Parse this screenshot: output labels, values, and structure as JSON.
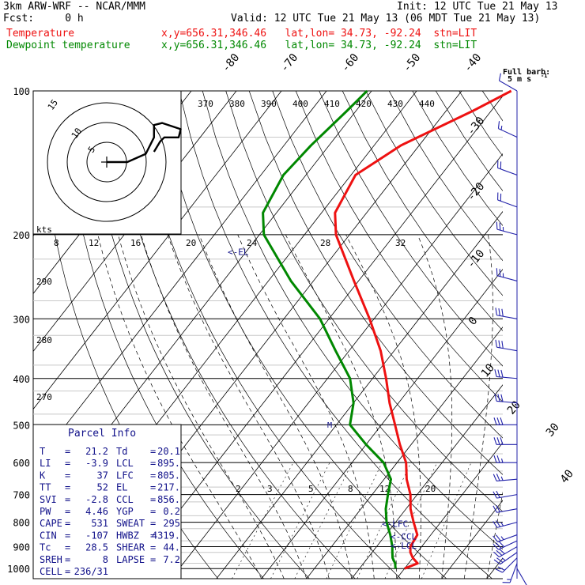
{
  "header": {
    "model": "3km ARW-WRF -- NCAR/MMM",
    "init": "Init: 12 UTC Tue 21 May 13",
    "fcst": "Fcst:     0 h",
    "valid": "Valid: 12 UTC Tue 21 May 13 (06 MDT Tue 21 May 13)",
    "temp_label": "Temperature",
    "dew_label": "Dewpoint temperature",
    "temp_loc": "x,y=656.31,346.46   lat,lon= 34.73, -92.24  stn=LIT",
    "dew_loc": "x,y=656.31,346.46   lat,lon= 34.73, -92.24  stn=LIT",
    "barb_title": "Full barb:",
    "barb_unit": "5 m s",
    "barb_unit_sup": "-1"
  },
  "colors": {
    "temperature": "#ee1111",
    "dewpoint": "#008800",
    "barbs": "#2222aa",
    "ebl": "#11118a"
  },
  "chart_data": {
    "type": "skew-t log-p sounding",
    "pressure_axis": {
      "levels": [
        100,
        200,
        300,
        400,
        500,
        600,
        700,
        800,
        900,
        1000
      ],
      "scale": "log"
    },
    "isotherm_labels": [
      -80,
      -70,
      -60,
      -50,
      -40,
      -30,
      -20,
      -10,
      0,
      10,
      20,
      30,
      40
    ],
    "theta_labels": [
      370,
      380,
      390,
      400,
      410,
      420,
      430,
      440
    ],
    "theta_e_labels": [
      290,
      280,
      270
    ],
    "mixing_ratio_labels": [
      "2",
      "3",
      "5",
      "8",
      "12",
      "20"
    ],
    "series": [
      {
        "name": "Temperature",
        "points": [
          [
            1000,
            20
          ],
          [
            975,
            22
          ],
          [
            950,
            20
          ],
          [
            925,
            18.5
          ],
          [
            900,
            17.5
          ],
          [
            850,
            17
          ],
          [
            800,
            14
          ],
          [
            750,
            11
          ],
          [
            700,
            8.5
          ],
          [
            650,
            5
          ],
          [
            600,
            2
          ],
          [
            550,
            -2.5
          ],
          [
            500,
            -7
          ],
          [
            450,
            -12
          ],
          [
            400,
            -17
          ],
          [
            350,
            -23
          ],
          [
            300,
            -31
          ],
          [
            250,
            -41
          ],
          [
            200,
            -53
          ],
          [
            180,
            -57
          ],
          [
            150,
            -59
          ],
          [
            130,
            -54
          ],
          [
            110,
            -44
          ],
          [
            100,
            -39
          ]
        ]
      },
      {
        "name": "Dewpoint temperature",
        "points": [
          [
            1000,
            18
          ],
          [
            975,
            17
          ],
          [
            950,
            15.5
          ],
          [
            925,
            14.5
          ],
          [
            900,
            13.5
          ],
          [
            850,
            11
          ],
          [
            800,
            8
          ],
          [
            750,
            5.5
          ],
          [
            700,
            3.5
          ],
          [
            650,
            1.5
          ],
          [
            600,
            -3
          ],
          [
            550,
            -10
          ],
          [
            500,
            -17
          ],
          [
            450,
            -20
          ],
          [
            400,
            -25
          ],
          [
            350,
            -33
          ],
          [
            300,
            -42
          ],
          [
            250,
            -55
          ],
          [
            200,
            -69
          ],
          [
            180,
            -73
          ],
          [
            150,
            -75
          ],
          [
            130,
            -74
          ],
          [
            110,
            -72
          ],
          [
            100,
            -71
          ]
        ]
      }
    ],
    "markers": [
      {
        "label": "<-EL",
        "pressure": 217
      },
      {
        "label": "<-LFC",
        "pressure": 805
      },
      {
        "label": "<-CCL",
        "pressure": 856
      },
      {
        "label": "<-LCL",
        "pressure": 895
      }
    ],
    "hodograph": {
      "unit_label": "kts",
      "ring_labels": [
        "5",
        "10",
        "15"
      ],
      "speed_ticks": [
        "8",
        "12",
        "16",
        "20",
        "24",
        "28",
        "32"
      ],
      "points": [
        [
          0,
          0
        ],
        [
          10,
          0
        ],
        [
          19,
          4
        ],
        [
          23,
          12
        ],
        [
          23,
          18
        ],
        [
          27,
          19
        ],
        [
          36,
          16
        ],
        [
          35,
          12
        ],
        [
          28,
          12
        ],
        [
          26,
          10
        ],
        [
          23,
          5
        ]
      ]
    },
    "parcel_info": {
      "title": "Parcel Info",
      "rows": [
        {
          "k1": "T",
          "v1": "21.2",
          "k2": "Td",
          "v2": "20.1"
        },
        {
          "k1": "LI",
          "v1": "-3.9",
          "k2": "LCL",
          "v2": "895."
        },
        {
          "k1": "K",
          "v1": "37",
          "k2": "LFC",
          "v2": "805."
        },
        {
          "k1": "TT",
          "v1": "52",
          "k2": "EL",
          "v2": "217."
        },
        {
          "k1": "SVI",
          "v1": "-2.8",
          "k2": "CCL",
          "v2": "856."
        },
        {
          "k1": "PW",
          "v1": "4.46",
          "k2": "YGP",
          "v2": "0.2"
        },
        {
          "k1": "CAPE",
          "v1": "531",
          "k2": "SWEAT",
          "v2": "295"
        },
        {
          "k1": "CIN",
          "v1": "-107",
          "k2": "HWBZ",
          "v2": "4319."
        },
        {
          "k1": "Tc",
          "v1": "28.5",
          "k2": "SHEAR",
          "v2": "44."
        },
        {
          "k1": "SREH",
          "v1": "8",
          "k2": "LAPSE",
          "v2": "7.2"
        },
        {
          "k1": "CELL",
          "v1": "236/31",
          "k2": "",
          "v2": ""
        }
      ]
    },
    "wind_barbs": [
      {
        "p": 1000,
        "dir": 150,
        "spd": 8
      },
      {
        "p": 975,
        "dir": 200,
        "spd": 14
      },
      {
        "p": 950,
        "dir": 225,
        "spd": 22
      },
      {
        "p": 925,
        "dir": 235,
        "spd": 26
      },
      {
        "p": 900,
        "dir": 240,
        "spd": 28
      },
      {
        "p": 875,
        "dir": 245,
        "spd": 28
      },
      {
        "p": 850,
        "dir": 250,
        "spd": 26
      },
      {
        "p": 800,
        "dir": 255,
        "spd": 24
      },
      {
        "p": 750,
        "dir": 260,
        "spd": 22
      },
      {
        "p": 700,
        "dir": 260,
        "spd": 22
      },
      {
        "p": 650,
        "dir": 265,
        "spd": 24
      },
      {
        "p": 600,
        "dir": 270,
        "spd": 26
      },
      {
        "p": 550,
        "dir": 270,
        "spd": 28
      },
      {
        "p": 500,
        "dir": 270,
        "spd": 30
      },
      {
        "p": 450,
        "dir": 275,
        "spd": 30
      },
      {
        "p": 400,
        "dir": 275,
        "spd": 32
      },
      {
        "p": 350,
        "dir": 280,
        "spd": 30
      },
      {
        "p": 300,
        "dir": 280,
        "spd": 28
      },
      {
        "p": 250,
        "dir": 285,
        "spd": 26
      },
      {
        "p": 200,
        "dir": 285,
        "spd": 24
      },
      {
        "p": 175,
        "dir": 290,
        "spd": 22
      },
      {
        "p": 150,
        "dir": 290,
        "spd": 18
      },
      {
        "p": 125,
        "dir": 295,
        "spd": 14
      },
      {
        "p": 100,
        "dir": 300,
        "spd": 10
      }
    ]
  }
}
